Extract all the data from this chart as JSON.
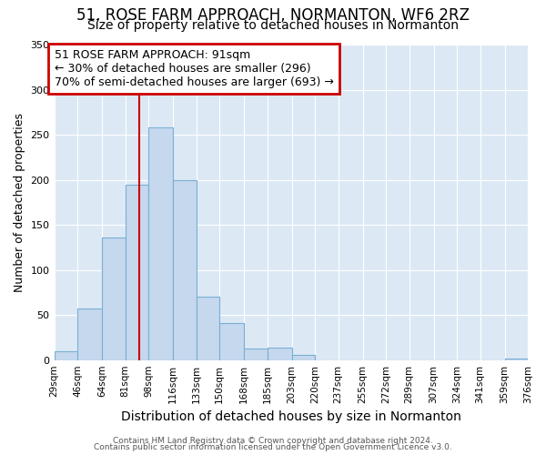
{
  "title": "51, ROSE FARM APPROACH, NORMANTON, WF6 2RZ",
  "subtitle": "Size of property relative to detached houses in Normanton",
  "xlabel": "Distribution of detached houses by size in Normanton",
  "ylabel": "Number of detached properties",
  "bin_labels": [
    "29sqm",
    "46sqm",
    "64sqm",
    "81sqm",
    "98sqm",
    "116sqm",
    "133sqm",
    "150sqm",
    "168sqm",
    "185sqm",
    "203sqm",
    "220sqm",
    "237sqm",
    "255sqm",
    "272sqm",
    "289sqm",
    "307sqm",
    "324sqm",
    "341sqm",
    "359sqm",
    "376sqm"
  ],
  "bin_edges": [
    29,
    46,
    64,
    81,
    98,
    116,
    133,
    150,
    168,
    185,
    203,
    220,
    237,
    255,
    272,
    289,
    307,
    324,
    341,
    359,
    376
  ],
  "bar_heights": [
    10,
    57,
    136,
    195,
    258,
    200,
    70,
    41,
    13,
    14,
    6,
    0,
    0,
    0,
    0,
    0,
    0,
    0,
    0,
    2
  ],
  "bar_color": "#c5d8ed",
  "bar_edgecolor": "#7aafd4",
  "vline_x": 91,
  "vline_color": "#cc0000",
  "annotation_line1": "51 ROSE FARM APPROACH: 91sqm",
  "annotation_line2": "← 30% of detached houses are smaller (296)",
  "annotation_line3": "70% of semi-detached houses are larger (693) →",
  "annotation_box_edgecolor": "#cc0000",
  "annotation_box_facecolor": "#ffffff",
  "ylim": [
    0,
    350
  ],
  "yticks": [
    0,
    50,
    100,
    150,
    200,
    250,
    300,
    350
  ],
  "footer_line1": "Contains HM Land Registry data © Crown copyright and database right 2024.",
  "footer_line2": "Contains public sector information licensed under the Open Government Licence v3.0.",
  "bg_color": "#dce9f5",
  "fig_bg_color": "#ffffff",
  "grid_color": "#ffffff",
  "title_fontsize": 12,
  "subtitle_fontsize": 10,
  "xlabel_fontsize": 10,
  "ylabel_fontsize": 9,
  "tick_fontsize": 7.5,
  "annotation_fontsize": 9,
  "footer_fontsize": 6.5
}
